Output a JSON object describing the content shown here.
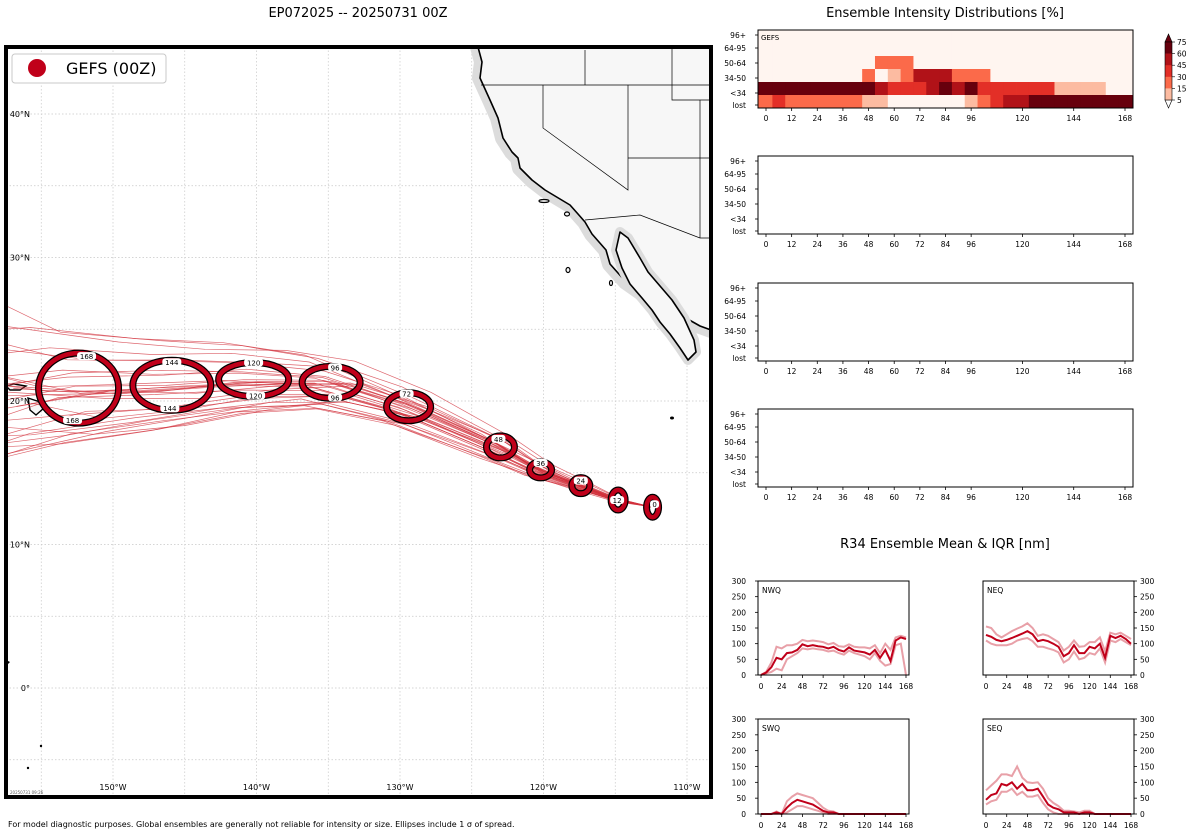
{
  "colors": {
    "track": "#d2323c",
    "ellipse": "#c0001a",
    "land": "#f7f7f7",
    "coast_halo": "#dcdcdc",
    "iqr": "#e8a0a8",
    "mean": "#c0001a",
    "grid": "#c8c8c8",
    "heat_scale": [
      "#fff5f0",
      "#fcbba1",
      "#fb6a4a",
      "#e32f27",
      "#b11218",
      "#67000d"
    ]
  },
  "map": {
    "title": "EP072025 -- 20250731 00Z",
    "legend_label": "GEFS (00Z)",
    "lon_labels": [
      "150°W",
      "140°W",
      "130°W",
      "120°W",
      "110°W"
    ],
    "lat_labels": [
      "40°N",
      "30°N",
      "20°N",
      "10°N",
      "0°"
    ],
    "stamp": "20250731 09:26",
    "footer": "For model diagnostic purposes. Global ensembles are generally not reliable for intensity or size. Ellipses include 1 σ of spread.",
    "ellipse_labels": [
      "0",
      "12",
      "24",
      "36",
      "48",
      "72",
      "96",
      "96",
      "120",
      "120",
      "144",
      "144",
      "168",
      "168"
    ]
  },
  "chart_data": [
    {
      "type": "heatmap",
      "title": "Ensemble Intensity Distributions [%]",
      "panel_label": "GEFS",
      "y_categories": [
        "96+",
        "64-95",
        "50-64",
        "34-50",
        "<34",
        "lost"
      ],
      "x_ticks": [
        "0",
        "12",
        "24",
        "36",
        "48",
        "60",
        "72",
        "84",
        "96",
        "120",
        "144",
        "168"
      ],
      "x_hours": [
        0,
        6,
        12,
        18,
        24,
        30,
        36,
        42,
        48,
        54,
        60,
        66,
        72,
        78,
        84,
        90,
        96,
        102,
        108,
        114,
        120,
        126,
        132,
        138,
        144,
        150,
        156,
        162,
        168
      ],
      "colorbar_ticks": [
        "75",
        "60",
        "45",
        "30",
        "15",
        "5"
      ],
      "colorbar_levels": [
        5,
        15,
        30,
        45,
        60,
        75
      ],
      "values": {
        "96+": [
          0,
          0,
          0,
          0,
          0,
          0,
          0,
          0,
          0,
          0,
          0,
          0,
          0,
          0,
          0,
          0,
          0,
          0,
          0,
          0,
          0,
          0,
          0,
          0,
          0,
          0,
          0,
          0,
          0
        ],
        "64-95": [
          0,
          0,
          0,
          0,
          0,
          0,
          0,
          0,
          0,
          0,
          0,
          0,
          0,
          0,
          0,
          0,
          0,
          0,
          0,
          0,
          0,
          0,
          0,
          0,
          0,
          0,
          0,
          0,
          0
        ],
        "50-64": [
          0,
          0,
          0,
          0,
          0,
          0,
          0,
          0,
          0,
          20,
          25,
          25,
          0,
          0,
          0,
          0,
          0,
          0,
          0,
          0,
          0,
          0,
          0,
          0,
          0,
          0,
          0,
          0,
          0
        ],
        "34-50": [
          0,
          0,
          0,
          0,
          0,
          0,
          0,
          0,
          20,
          0,
          10,
          15,
          55,
          52,
          52,
          25,
          20,
          20,
          0,
          0,
          0,
          0,
          0,
          0,
          0,
          0,
          0,
          0,
          0
        ],
        "<34": [
          80,
          65,
          75,
          80,
          75,
          75,
          65,
          80,
          70,
          45,
          40,
          40,
          40,
          45,
          65,
          45,
          75,
          30,
          30,
          40,
          40,
          30,
          30,
          10,
          10,
          10,
          10,
          0,
          0
        ],
        "lost": [
          20,
          35,
          25,
          20,
          25,
          25,
          15,
          20,
          10,
          10,
          0,
          0,
          0,
          0,
          0,
          0,
          5,
          25,
          35,
          45,
          50,
          70,
          70,
          90,
          90,
          90,
          90,
          90,
          100
        ]
      }
    },
    {
      "type": "heatmap",
      "panel_label": "",
      "y_categories": [
        "96+",
        "64-95",
        "50-64",
        "34-50",
        "<34",
        "lost"
      ],
      "x_ticks": [
        "0",
        "12",
        "24",
        "36",
        "48",
        "60",
        "72",
        "84",
        "96",
        "120",
        "144",
        "168"
      ],
      "values": {}
    },
    {
      "type": "heatmap",
      "panel_label": "",
      "y_categories": [
        "96+",
        "64-95",
        "50-64",
        "34-50",
        "<34",
        "lost"
      ],
      "x_ticks": [
        "0",
        "12",
        "24",
        "36",
        "48",
        "60",
        "72",
        "84",
        "96",
        "120",
        "144",
        "168"
      ],
      "values": {}
    },
    {
      "type": "heatmap",
      "panel_label": "",
      "y_categories": [
        "96+",
        "64-95",
        "50-64",
        "34-50",
        "<34",
        "lost"
      ],
      "x_ticks": [
        "0",
        "12",
        "24",
        "36",
        "48",
        "60",
        "72",
        "84",
        "96",
        "120",
        "144",
        "168"
      ],
      "values": {}
    },
    {
      "type": "line",
      "title": "R34 Ensemble Mean & IQR [nm]",
      "quadrants": [
        {
          "label": "NWQ",
          "ylim": [
            0,
            300
          ],
          "y_ticks": [
            "300",
            "250",
            "200",
            "150",
            "100",
            "50",
            "0"
          ],
          "x_ticks": [
            "0",
            "24",
            "48",
            "72",
            "96",
            "120",
            "144",
            "168"
          ],
          "x": [
            0,
            6,
            12,
            18,
            24,
            30,
            36,
            42,
            48,
            54,
            60,
            66,
            72,
            78,
            84,
            90,
            96,
            102,
            108,
            114,
            120,
            126,
            132,
            138,
            144,
            150,
            156,
            162,
            168
          ],
          "mean": [
            0,
            8,
            25,
            55,
            50,
            70,
            72,
            80,
            98,
            92,
            95,
            92,
            90,
            85,
            90,
            80,
            75,
            88,
            78,
            75,
            72,
            65,
            80,
            55,
            80,
            45,
            110,
            120,
            115
          ],
          "q1": [
            0,
            5,
            10,
            20,
            15,
            50,
            60,
            70,
            85,
            82,
            85,
            82,
            80,
            75,
            78,
            70,
            65,
            78,
            70,
            65,
            60,
            50,
            70,
            45,
            30,
            35,
            95,
            100,
            0
          ],
          "q3": [
            0,
            10,
            40,
            90,
            85,
            95,
            95,
            100,
            112,
            108,
            110,
            108,
            105,
            98,
            102,
            92,
            90,
            98,
            90,
            88,
            88,
            85,
            95,
            70,
            100,
            80,
            120,
            125,
            120
          ]
        },
        {
          "label": "NEQ",
          "ylim": [
            0,
            300
          ],
          "y_ticks": [
            "300",
            "250",
            "200",
            "150",
            "100",
            "50",
            "0"
          ],
          "x_ticks": [
            "0",
            "24",
            "48",
            "72",
            "96",
            "120",
            "144",
            "168"
          ],
          "x": [
            0,
            6,
            12,
            18,
            24,
            30,
            36,
            42,
            48,
            54,
            60,
            66,
            72,
            78,
            84,
            90,
            96,
            102,
            108,
            114,
            120,
            126,
            132,
            138,
            144,
            150,
            156,
            162,
            168
          ],
          "mean": [
            128,
            122,
            112,
            108,
            112,
            118,
            125,
            132,
            140,
            130,
            108,
            112,
            108,
            100,
            90,
            60,
            70,
            95,
            70,
            70,
            90,
            85,
            100,
            55,
            125,
            118,
            125,
            115,
            100
          ],
          "q1": [
            110,
            100,
            95,
            95,
            95,
            100,
            110,
            115,
            118,
            108,
            90,
            90,
            85,
            80,
            72,
            40,
            50,
            75,
            50,
            55,
            70,
            65,
            85,
            40,
            110,
            105,
            115,
            105,
            95
          ],
          "q3": [
            155,
            150,
            130,
            120,
            130,
            140,
            148,
            155,
            165,
            150,
            125,
            130,
            125,
            115,
            105,
            78,
            90,
            110,
            90,
            92,
            105,
            105,
            120,
            75,
            135,
            130,
            135,
            125,
            115
          ]
        },
        {
          "label": "SWQ",
          "ylim": [
            0,
            300
          ],
          "y_ticks": [
            "300",
            "250",
            "200",
            "150",
            "100",
            "50",
            "0"
          ],
          "x_ticks": [
            "0",
            "24",
            "48",
            "72",
            "96",
            "120",
            "144",
            "168"
          ],
          "x": [
            0,
            6,
            12,
            18,
            24,
            30,
            36,
            42,
            48,
            54,
            60,
            66,
            72,
            78,
            84,
            90,
            96,
            102,
            108,
            114,
            120,
            126,
            132,
            138,
            144,
            150,
            156,
            162,
            168
          ],
          "mean": [
            0,
            0,
            0,
            5,
            0,
            20,
            35,
            45,
            40,
            35,
            30,
            20,
            10,
            5,
            5,
            0,
            0,
            0,
            0,
            0,
            0,
            0,
            0,
            0,
            0,
            0,
            0,
            0,
            0
          ],
          "q1": [
            0,
            0,
            0,
            0,
            0,
            5,
            15,
            25,
            25,
            20,
            15,
            10,
            5,
            0,
            0,
            0,
            0,
            0,
            0,
            0,
            0,
            0,
            0,
            0,
            0,
            0,
            0,
            0,
            0
          ],
          "q3": [
            0,
            0,
            0,
            8,
            0,
            40,
            55,
            65,
            60,
            55,
            50,
            35,
            20,
            10,
            8,
            0,
            0,
            0,
            0,
            0,
            0,
            0,
            0,
            0,
            0,
            0,
            0,
            0,
            0
          ]
        },
        {
          "label": "SEQ",
          "ylim": [
            0,
            300
          ],
          "y_ticks": [
            "300",
            "250",
            "200",
            "150",
            "100",
            "50",
            "0"
          ],
          "x_ticks": [
            "0",
            "24",
            "48",
            "72",
            "96",
            "120",
            "144",
            "168"
          ],
          "x": [
            0,
            6,
            12,
            18,
            24,
            30,
            36,
            42,
            48,
            54,
            60,
            66,
            72,
            78,
            84,
            90,
            96,
            102,
            108,
            114,
            120,
            126,
            132,
            138,
            144,
            150,
            156,
            162,
            168
          ],
          "mean": [
            45,
            60,
            65,
            95,
            90,
            100,
            80,
            95,
            75,
            75,
            80,
            55,
            30,
            20,
            15,
            5,
            5,
            5,
            0,
            5,
            5,
            0,
            0,
            0,
            0,
            0,
            0,
            0,
            0
          ],
          "q1": [
            30,
            40,
            45,
            70,
            70,
            80,
            60,
            70,
            55,
            55,
            60,
            35,
            15,
            5,
            0,
            0,
            0,
            0,
            0,
            0,
            0,
            0,
            0,
            0,
            0,
            0,
            0,
            0,
            0
          ],
          "q3": [
            75,
            90,
            105,
            125,
            125,
            120,
            150,
            115,
            100,
            98,
            100,
            80,
            50,
            35,
            25,
            10,
            10,
            8,
            5,
            10,
            10,
            0,
            0,
            0,
            0,
            0,
            0,
            0,
            0
          ]
        }
      ]
    }
  ]
}
